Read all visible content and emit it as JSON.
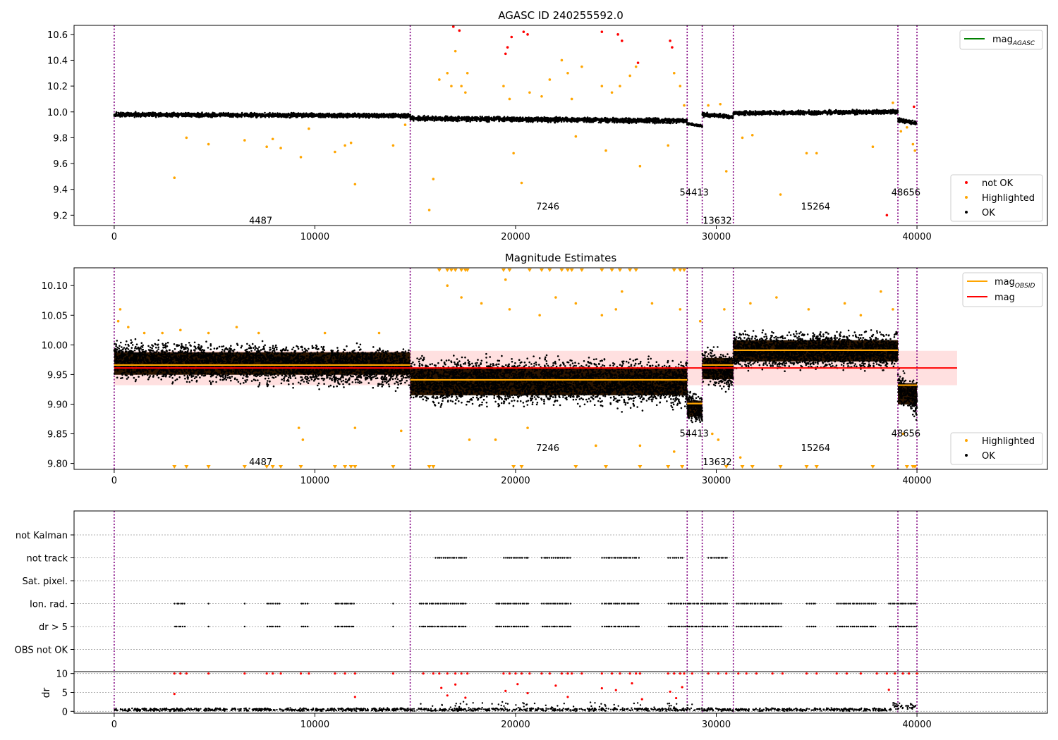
{
  "chart_data": [
    {
      "type": "scatter",
      "title": "AGASC ID 240255592.0",
      "xlabel": "",
      "ylabel": "",
      "xlim": [
        -2000,
        46500
      ],
      "ylim": [
        9.12,
        10.67
      ],
      "x_ticks": [
        0,
        10000,
        20000,
        30000,
        40000
      ],
      "y_ticks": [
        9.2,
        9.4,
        9.6,
        9.8,
        10.0,
        10.2,
        10.4,
        10.6
      ],
      "y_tick_labels": [
        "9.2",
        "9.4",
        "9.6",
        "9.8",
        "10.0",
        "10.2",
        "10.4",
        "10.6"
      ],
      "obsid_boundaries": [
        0,
        14750,
        28550,
        29300,
        30850,
        39050,
        40000
      ],
      "obsid_labels": [
        {
          "text": "4487",
          "x": 7300,
          "y": 9.16
        },
        {
          "text": "7246",
          "x": 21600,
          "y": 9.27
        },
        {
          "text": "54413",
          "x": 28900,
          "y": 9.38
        },
        {
          "text": "13632",
          "x": 30050,
          "y": 9.16
        },
        {
          "text": "15264",
          "x": 34950,
          "y": 9.27
        },
        {
          "text": "48656",
          "x": 39450,
          "y": 9.38
        }
      ],
      "segments_ok": [
        {
          "x": [
            0,
            14750
          ],
          "y": [
            9.98,
            9.97
          ],
          "spread": 0.022
        },
        {
          "x": [
            14750,
            28550
          ],
          "y": [
            9.95,
            9.93
          ],
          "spread": 0.025
        },
        {
          "x": [
            28550,
            29300
          ],
          "y": [
            9.91,
            9.89
          ],
          "spread": 0.012
        },
        {
          "x": [
            29300,
            30850
          ],
          "y": [
            9.98,
            9.96
          ],
          "spread": 0.022
        },
        {
          "x": [
            30850,
            39050
          ],
          "y": [
            9.99,
            10.0
          ],
          "spread": 0.022
        },
        {
          "x": [
            39050,
            40000
          ],
          "y": [
            9.94,
            9.91
          ],
          "spread": 0.022
        }
      ],
      "highlighted_points": [
        [
          3000,
          9.49
        ],
        [
          3600,
          9.8
        ],
        [
          4700,
          9.75
        ],
        [
          6500,
          9.78
        ],
        [
          7600,
          9.73
        ],
        [
          7900,
          9.79
        ],
        [
          8300,
          9.72
        ],
        [
          9300,
          9.65
        ],
        [
          9700,
          9.87
        ],
        [
          11000,
          9.69
        ],
        [
          11500,
          9.74
        ],
        [
          11800,
          9.76
        ],
        [
          12000,
          9.44
        ],
        [
          13900,
          9.74
        ],
        [
          14500,
          9.9
        ],
        [
          15700,
          9.24
        ],
        [
          15900,
          9.48
        ],
        [
          16200,
          10.25
        ],
        [
          16600,
          10.3
        ],
        [
          16800,
          10.2
        ],
        [
          17000,
          10.47
        ],
        [
          17300,
          10.2
        ],
        [
          17500,
          10.15
        ],
        [
          17600,
          10.3
        ],
        [
          19400,
          10.2
        ],
        [
          19700,
          10.1
        ],
        [
          19900,
          9.68
        ],
        [
          20300,
          9.45
        ],
        [
          20700,
          10.15
        ],
        [
          21300,
          10.12
        ],
        [
          21700,
          10.25
        ],
        [
          22300,
          10.4
        ],
        [
          22600,
          10.3
        ],
        [
          22800,
          10.1
        ],
        [
          23000,
          9.81
        ],
        [
          23300,
          10.35
        ],
        [
          24300,
          10.2
        ],
        [
          24500,
          9.7
        ],
        [
          24800,
          10.15
        ],
        [
          25200,
          10.2
        ],
        [
          25700,
          10.28
        ],
        [
          26000,
          10.35
        ],
        [
          26200,
          9.58
        ],
        [
          27600,
          9.74
        ],
        [
          27900,
          10.3
        ],
        [
          28200,
          10.2
        ],
        [
          28400,
          10.05
        ],
        [
          29600,
          10.05
        ],
        [
          30200,
          10.06
        ],
        [
          30500,
          9.54
        ],
        [
          31300,
          9.8
        ],
        [
          31800,
          9.82
        ],
        [
          33200,
          9.36
        ],
        [
          34500,
          9.68
        ],
        [
          35000,
          9.68
        ],
        [
          37800,
          9.73
        ],
        [
          38800,
          10.07
        ],
        [
          39200,
          9.85
        ],
        [
          39500,
          9.88
        ],
        [
          39800,
          9.75
        ],
        [
          39900,
          9.7
        ]
      ],
      "not_ok_points": [
        [
          16900,
          10.66
        ],
        [
          17200,
          10.63
        ],
        [
          19500,
          10.45
        ],
        [
          19600,
          10.5
        ],
        [
          19800,
          10.58
        ],
        [
          20400,
          10.62
        ],
        [
          20600,
          10.6
        ],
        [
          24300,
          10.62
        ],
        [
          25100,
          10.6
        ],
        [
          25300,
          10.55
        ],
        [
          26100,
          10.38
        ],
        [
          27700,
          10.55
        ],
        [
          27800,
          10.5
        ],
        [
          38500,
          9.2
        ],
        [
          39850,
          10.04
        ]
      ],
      "legends": [
        {
          "position": "top-right",
          "entries": [
            {
              "label": "mag",
              "sub": "AGASC",
              "marker": "line",
              "color": "#008000"
            }
          ]
        },
        {
          "position": "lower-right",
          "entries": [
            {
              "label": "not OK",
              "marker": "dot",
              "color": "#ff0000"
            },
            {
              "label": "Highlighted",
              "marker": "dot",
              "color": "#ffa500"
            },
            {
              "label": "OK",
              "marker": "dot",
              "color": "#000000"
            }
          ]
        }
      ]
    },
    {
      "type": "scatter",
      "title": "Magnitude Estimates",
      "xlabel": "",
      "ylabel": "",
      "xlim": [
        -2000,
        46500
      ],
      "ylim": [
        9.79,
        10.13
      ],
      "x_ticks": [
        0,
        10000,
        20000,
        30000,
        40000
      ],
      "y_ticks": [
        9.8,
        9.85,
        9.9,
        9.95,
        10.0,
        10.05,
        10.1
      ],
      "y_tick_labels": [
        "9.80",
        "9.85",
        "9.90",
        "9.95",
        "10.00",
        "10.05",
        "10.10"
      ],
      "obsid_boundaries": [
        0,
        14750,
        28550,
        29300,
        30850,
        39050,
        40000
      ],
      "obsid_labels": [
        {
          "text": "4487",
          "x": 7300,
          "y": 9.803
        },
        {
          "text": "7246",
          "x": 21600,
          "y": 9.827
        },
        {
          "text": "54413",
          "x": 28900,
          "y": 9.851
        },
        {
          "text": "13632",
          "x": 30050,
          "y": 9.803
        },
        {
          "text": "15264",
          "x": 34950,
          "y": 9.827
        },
        {
          "text": "48656",
          "x": 39450,
          "y": 9.851
        }
      ],
      "mag": 9.961,
      "mag_band": [
        9.932,
        9.99
      ],
      "mag_band_x": [
        0,
        42000
      ],
      "obsid_mags": [
        {
          "x": [
            0,
            14750
          ],
          "y": 9.966
        },
        {
          "x": [
            14750,
            28550
          ],
          "y": 9.941
        },
        {
          "x": [
            28550,
            29300
          ],
          "y": 9.901
        },
        {
          "x": [
            29300,
            30850
          ],
          "y": 9.966
        },
        {
          "x": [
            30850,
            39050
          ],
          "y": 9.991
        },
        {
          "x": [
            39050,
            40000
          ],
          "y": 9.932
        }
      ],
      "segments_ok": [
        {
          "x": [
            0,
            14750
          ],
          "y": [
            9.975,
            9.962
          ],
          "spread": 0.042
        },
        {
          "x": [
            14750,
            28550
          ],
          "y": [
            9.94,
            9.935
          ],
          "spread": 0.05
        },
        {
          "x": [
            28550,
            29300
          ],
          "y": [
            9.9,
            9.885
          ],
          "spread": 0.03
        },
        {
          "x": [
            29300,
            30850
          ],
          "y": [
            9.965,
            9.955
          ],
          "spread": 0.04
        },
        {
          "x": [
            30850,
            39050
          ],
          "y": [
            9.99,
            9.99
          ],
          "spread": 0.04
        },
        {
          "x": [
            39050,
            40000
          ],
          "y": [
            9.93,
            9.905
          ],
          "spread": 0.04
        }
      ],
      "highlighted_points": [
        [
          200,
          10.04
        ],
        [
          300,
          10.06
        ],
        [
          700,
          10.03
        ],
        [
          1500,
          10.02
        ],
        [
          2400,
          10.02
        ],
        [
          3300,
          10.025
        ],
        [
          4700,
          10.02
        ],
        [
          6100,
          10.03
        ],
        [
          7200,
          10.02
        ],
        [
          9200,
          9.86
        ],
        [
          9400,
          9.84
        ],
        [
          10500,
          10.02
        ],
        [
          12000,
          9.86
        ],
        [
          13200,
          10.02
        ],
        [
          14300,
          9.855
        ],
        [
          16600,
          10.1
        ],
        [
          17300,
          10.08
        ],
        [
          17700,
          9.84
        ],
        [
          18300,
          10.07
        ],
        [
          19000,
          9.84
        ],
        [
          19500,
          10.11
        ],
        [
          19700,
          10.06
        ],
        [
          20600,
          9.86
        ],
        [
          21200,
          10.05
        ],
        [
          22000,
          10.08
        ],
        [
          23000,
          10.07
        ],
        [
          24000,
          9.83
        ],
        [
          24300,
          10.05
        ],
        [
          25000,
          10.06
        ],
        [
          25300,
          10.09
        ],
        [
          26200,
          9.83
        ],
        [
          26800,
          10.07
        ],
        [
          27900,
          9.82
        ],
        [
          28200,
          10.06
        ],
        [
          29200,
          10.04
        ],
        [
          29800,
          9.85
        ],
        [
          30100,
          9.84
        ],
        [
          30400,
          10.06
        ],
        [
          31200,
          9.81
        ],
        [
          31700,
          10.07
        ],
        [
          33000,
          10.08
        ],
        [
          34600,
          10.06
        ],
        [
          36400,
          10.07
        ],
        [
          37200,
          10.05
        ],
        [
          38200,
          10.09
        ],
        [
          38800,
          10.06
        ],
        [
          39300,
          9.85
        ]
      ],
      "lower_clipped_x": [
        3000,
        3600,
        4700,
        6500,
        7600,
        7900,
        8300,
        9300,
        11000,
        11500,
        11800,
        12000,
        13900,
        15700,
        15900,
        19900,
        20300,
        23000,
        24500,
        26200,
        27600,
        28300,
        30500,
        31300,
        31800,
        33200,
        34500,
        35000,
        37800,
        39500,
        39800,
        39900
      ],
      "upper_clipped_x": [
        16200,
        16600,
        16800,
        17000,
        17300,
        17500,
        17600,
        19400,
        19700,
        20700,
        21300,
        21700,
        22300,
        22600,
        22800,
        23300,
        24300,
        24800,
        25200,
        25700,
        26000,
        27900,
        28200,
        28400
      ],
      "legends": [
        {
          "position": "top-right",
          "entries": [
            {
              "label": "mag",
              "sub": "OBSID",
              "marker": "line",
              "color": "#ffa500"
            },
            {
              "label": "mag",
              "marker": "line",
              "color": "#ff0000"
            }
          ]
        },
        {
          "position": "lower-right",
          "entries": [
            {
              "label": "Highlighted",
              "marker": "dot",
              "color": "#ffa500"
            },
            {
              "label": "OK",
              "marker": "dot",
              "color": "#000000"
            }
          ]
        }
      ]
    },
    {
      "type": "scatter",
      "title": "",
      "xlabel": "",
      "ylabel": "",
      "xlim": [
        -2000,
        46500
      ],
      "x_ticks": [
        0,
        10000,
        20000,
        30000,
        40000
      ],
      "categories": [
        "not Kalman",
        "not track",
        "Sat. pixel.",
        "Ion. rad.",
        "dr > 5",
        "OBS not OK"
      ],
      "obsid_boundaries": [
        0,
        14750,
        28550,
        29300,
        30850,
        39050,
        40000
      ],
      "flag_rows": {
        "not track": [
          [
            16000,
            17600
          ],
          [
            19400,
            20700
          ],
          [
            21300,
            22800
          ],
          [
            24300,
            26200
          ],
          [
            27600,
            28400
          ],
          [
            29600,
            30600
          ]
        ],
        "Ion. rad.": [
          [
            3000,
            3600
          ],
          [
            4700,
            4700
          ],
          [
            6500,
            6500
          ],
          [
            7600,
            8300
          ],
          [
            9300,
            9700
          ],
          [
            11000,
            12000
          ],
          [
            13900,
            13900
          ],
          [
            15200,
            17600
          ],
          [
            19000,
            20700
          ],
          [
            21300,
            22800
          ],
          [
            24300,
            26200
          ],
          [
            27600,
            30600
          ],
          [
            31000,
            33300
          ],
          [
            34500,
            35000
          ],
          [
            36000,
            38000
          ],
          [
            38600,
            40000
          ]
        ],
        "dr > 5": [
          [
            3000,
            3600
          ],
          [
            4700,
            4700
          ],
          [
            6500,
            6500
          ],
          [
            7600,
            8300
          ],
          [
            9300,
            9700
          ],
          [
            11000,
            12000
          ],
          [
            13900,
            13900
          ],
          [
            15200,
            17600
          ],
          [
            19000,
            20700
          ],
          [
            21300,
            22800
          ],
          [
            24300,
            26200
          ],
          [
            27600,
            30600
          ],
          [
            31000,
            33300
          ],
          [
            34500,
            35000
          ],
          [
            36000,
            38000
          ],
          [
            38600,
            40000
          ]
        ]
      },
      "dr_ylabel": "dr",
      "dr_ylim": [
        -0.5,
        10.5
      ],
      "dr_ticks": [
        0,
        5,
        10
      ],
      "dr_high_x": [
        3000,
        3300,
        3600,
        4700,
        6500,
        7600,
        7900,
        8300,
        9300,
        9700,
        11000,
        11500,
        12000,
        13900,
        15400,
        15900,
        16200,
        16600,
        17000,
        17300,
        17600,
        19400,
        19700,
        20000,
        20300,
        20700,
        21300,
        21700,
        22300,
        22600,
        22800,
        23300,
        24300,
        24800,
        25200,
        25700,
        26000,
        26200,
        27600,
        27900,
        28200,
        28400,
        28800,
        29600,
        30100,
        30500,
        31100,
        31500,
        32000,
        32800,
        33300,
        34500,
        35000,
        36000,
        36500,
        37200,
        38000,
        38500,
        38900,
        39300,
        39600,
        40000
      ],
      "dr_mid_points": [
        [
          16300,
          6.2
        ],
        [
          16600,
          4.2
        ],
        [
          17000,
          7.1
        ],
        [
          17500,
          3.6
        ],
        [
          19500,
          5.4
        ],
        [
          20100,
          7.2
        ],
        [
          20600,
          4.8
        ],
        [
          22000,
          6.8
        ],
        [
          22600,
          3.8
        ],
        [
          24300,
          6.1
        ],
        [
          25000,
          5.6
        ],
        [
          25800,
          7.4
        ],
        [
          26300,
          3.2
        ],
        [
          27700,
          5.2
        ],
        [
          28000,
          3.5
        ],
        [
          28300,
          6.4
        ],
        [
          12000,
          3.8
        ],
        [
          3000,
          4.6
        ],
        [
          38600,
          5.7
        ]
      ]
    }
  ]
}
